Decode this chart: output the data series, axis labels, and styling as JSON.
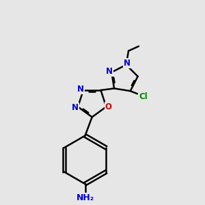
{
  "bg_color": "#e6e6e6",
  "bond_color": "#000000",
  "bond_width": 1.8,
  "atom_colors": {
    "N": "#0000cc",
    "O": "#cc0000",
    "Cl": "#008800",
    "C": "#000000",
    "H": "#000000"
  },
  "font_size": 8.5,
  "title": ""
}
